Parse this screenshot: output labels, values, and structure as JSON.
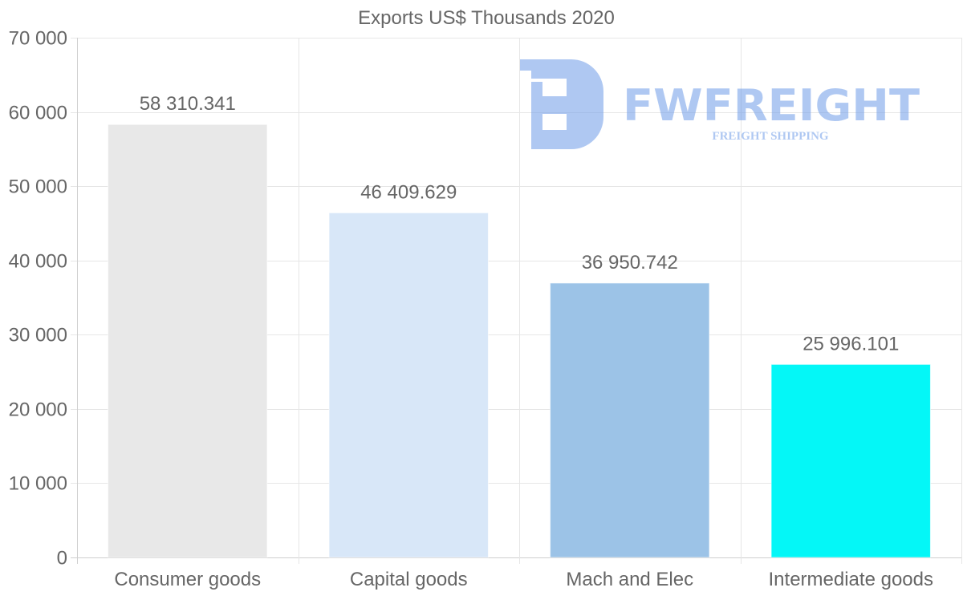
{
  "chart_data": {
    "type": "bar",
    "title": "Exports US$ Thousands 2020",
    "xlabel": "",
    "ylabel": "",
    "categories": [
      "Consumer goods",
      "Capital goods",
      "Mach and Elec",
      "Intermediate goods"
    ],
    "values": [
      58310.341,
      46409.629,
      36950.742,
      25996.101
    ],
    "value_labels": [
      "58 310.341",
      "46 409.629",
      "36 950.742",
      "25 996.101"
    ],
    "colors": [
      "#e8e8e8",
      "#d8e7f8",
      "#9cc3e7",
      "#04f7f7"
    ],
    "ylim": [
      0,
      70000
    ],
    "yticks": [
      0,
      10000,
      20000,
      30000,
      40000,
      50000,
      60000,
      70000
    ],
    "ytick_labels": [
      "0",
      "10 000",
      "20 000",
      "30 000",
      "40 000",
      "50 000",
      "60 000",
      "70 000"
    ],
    "grid": true,
    "legend": "none"
  },
  "watermark": {
    "brand": "FWFREIGHT",
    "tagline": "FREIGHT SHIPPING",
    "color": "#6f9ce8"
  }
}
